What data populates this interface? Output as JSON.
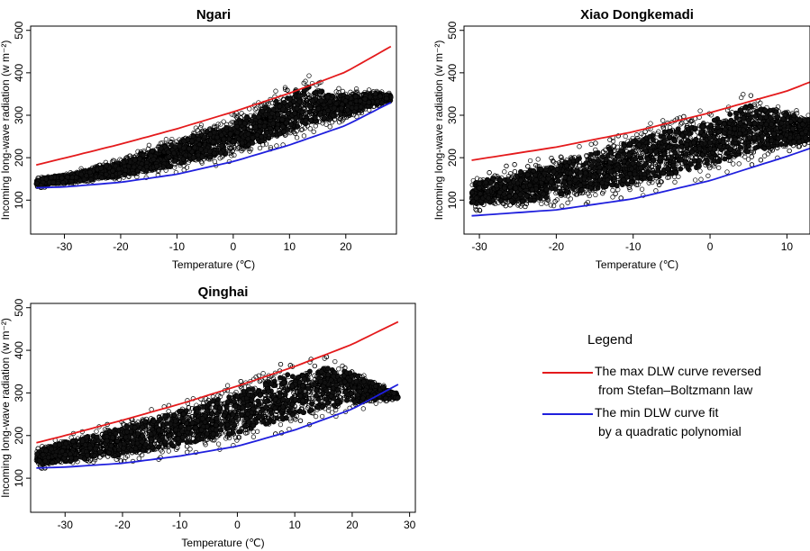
{
  "chart_data": [
    {
      "type": "scatter",
      "title": "Ngari",
      "xlabel": "Temperature (℃)",
      "ylabel": "Incoming long-wave radiation (w m⁻²)",
      "xlim": [
        -36,
        29
      ],
      "ylim": [
        20,
        510
      ],
      "xticks": [
        -30,
        -20,
        -10,
        0,
        10,
        20
      ],
      "yticks": [
        100,
        200,
        300,
        400,
        500
      ],
      "scatter_cloud": {
        "x_range": [
          -35,
          28
        ],
        "lower_bound": [
          [
            -35,
            128
          ],
          [
            -30,
            134
          ],
          [
            -20,
            145
          ],
          [
            -10,
            162
          ],
          [
            0,
            190
          ],
          [
            10,
            235
          ],
          [
            20,
            285
          ],
          [
            28,
            330
          ]
        ],
        "upper_bound": [
          [
            -35,
            155
          ],
          [
            -30,
            165
          ],
          [
            -20,
            200
          ],
          [
            -15,
            230
          ],
          [
            -10,
            258
          ],
          [
            -5,
            282
          ],
          [
            0,
            305
          ],
          [
            5,
            340
          ],
          [
            10,
            380
          ],
          [
            13,
            398
          ],
          [
            18,
            365
          ],
          [
            25,
            362
          ],
          [
            28,
            355
          ]
        ]
      },
      "series": [
        {
          "name": "The max DLW curve reversed from Stefan–Boltzmann law",
          "color": "#e41a1c",
          "points": [
            [
              -35,
              183
            ],
            [
              -30,
              199
            ],
            [
              -20,
              232
            ],
            [
              -10,
              268
            ],
            [
              0,
              308
            ],
            [
              10,
              352
            ],
            [
              20,
              402
            ],
            [
              28,
              462
            ]
          ]
        },
        {
          "name": "The min DLW curve fit by a quadratic polynomial",
          "color": "#1f1fdd",
          "points": [
            [
              -35,
              129
            ],
            [
              -30,
              131
            ],
            [
              -20,
              142
            ],
            [
              -10,
              161
            ],
            [
              0,
              191
            ],
            [
              10,
              230
            ],
            [
              20,
              276
            ],
            [
              28,
              330
            ]
          ]
        }
      ]
    },
    {
      "type": "scatter",
      "title": "Xiao Dongkemadi",
      "xlabel": "Temperature (℃)",
      "ylabel": "Incoming long-wave radiation (w m⁻²)",
      "xlim": [
        -32,
        13
      ],
      "ylim": [
        20,
        510
      ],
      "xticks": [
        -30,
        -20,
        -10,
        0,
        10
      ],
      "yticks": [
        100,
        200,
        300,
        400,
        500
      ],
      "scatter_cloud": {
        "x_range": [
          -31,
          13
        ],
        "lower_bound": [
          [
            -31,
            75
          ],
          [
            -25,
            70
          ],
          [
            -20,
            80
          ],
          [
            -10,
            105
          ],
          [
            0,
            150
          ],
          [
            10,
            205
          ],
          [
            13,
            225
          ]
        ],
        "upper_bound": [
          [
            -31,
            155
          ],
          [
            -25,
            190
          ],
          [
            -20,
            210
          ],
          [
            -15,
            240
          ],
          [
            -10,
            275
          ],
          [
            -5,
            300
          ],
          [
            0,
            320
          ],
          [
            5,
            360
          ],
          [
            10,
            330
          ],
          [
            13,
            310
          ]
        ]
      },
      "series": [
        {
          "name": "The max DLW curve reversed from Stefan–Boltzmann law",
          "color": "#e41a1c",
          "points": [
            [
              -31,
              194
            ],
            [
              -20,
              225
            ],
            [
              -10,
              261
            ],
            [
              0,
              306
            ],
            [
              10,
              357
            ],
            [
              13,
              378
            ]
          ]
        },
        {
          "name": "The min DLW curve fit by a quadratic polynomial",
          "color": "#1f1fdd",
          "points": [
            [
              -31,
              63
            ],
            [
              -20,
              77
            ],
            [
              -10,
              103
            ],
            [
              0,
              146
            ],
            [
              10,
              203
            ],
            [
              13,
              222
            ]
          ]
        }
      ]
    },
    {
      "type": "scatter",
      "title": "Qinghai",
      "xlabel": "Temperature (℃)",
      "ylabel": "Incoming long-wave radiation (w m⁻²)",
      "xlim": [
        -36,
        31
      ],
      "ylim": [
        20,
        510
      ],
      "xticks": [
        -30,
        -20,
        -10,
        0,
        10,
        20,
        30
      ],
      "yticks": [
        100,
        200,
        300,
        400,
        500
      ],
      "scatter_cloud": {
        "x_range": [
          -35,
          28
        ],
        "lower_bound": [
          [
            -35,
            122
          ],
          [
            -30,
            124
          ],
          [
            -20,
            133
          ],
          [
            -10,
            150
          ],
          [
            0,
            175
          ],
          [
            10,
            210
          ],
          [
            20,
            255
          ],
          [
            28,
            285
          ]
        ],
        "upper_bound": [
          [
            -35,
            175
          ],
          [
            -30,
            200
          ],
          [
            -20,
            240
          ],
          [
            -10,
            285
          ],
          [
            0,
            330
          ],
          [
            10,
            385
          ],
          [
            13,
            400
          ],
          [
            20,
            370
          ],
          [
            28,
            300
          ]
        ]
      },
      "series": [
        {
          "name": "The max DLW curve reversed from Stefan–Boltzmann law",
          "color": "#e41a1c",
          "points": [
            [
              -35,
              183
            ],
            [
              -30,
              200
            ],
            [
              -20,
              236
            ],
            [
              -10,
              274
            ],
            [
              0,
              316
            ],
            [
              10,
              362
            ],
            [
              20,
              414
            ],
            [
              28,
              467
            ]
          ]
        },
        {
          "name": "The min DLW curve fit by a quadratic polynomial",
          "color": "#1f1fdd",
          "points": [
            [
              -35,
              124
            ],
            [
              -30,
              126
            ],
            [
              -20,
              135
            ],
            [
              -10,
              152
            ],
            [
              0,
              175
            ],
            [
              10,
              213
            ],
            [
              20,
              262
            ],
            [
              28,
              320
            ]
          ]
        }
      ]
    }
  ],
  "legend": {
    "title": "Legend",
    "items": [
      {
        "line1": "The max DLW curve reversed",
        "line2": "from Stefan–Boltzmann law",
        "color": "#e41a1c"
      },
      {
        "line1": "The min DLW curve fit",
        "line2": "by a quadratic polynomial",
        "color": "#1f1fdd"
      }
    ]
  }
}
